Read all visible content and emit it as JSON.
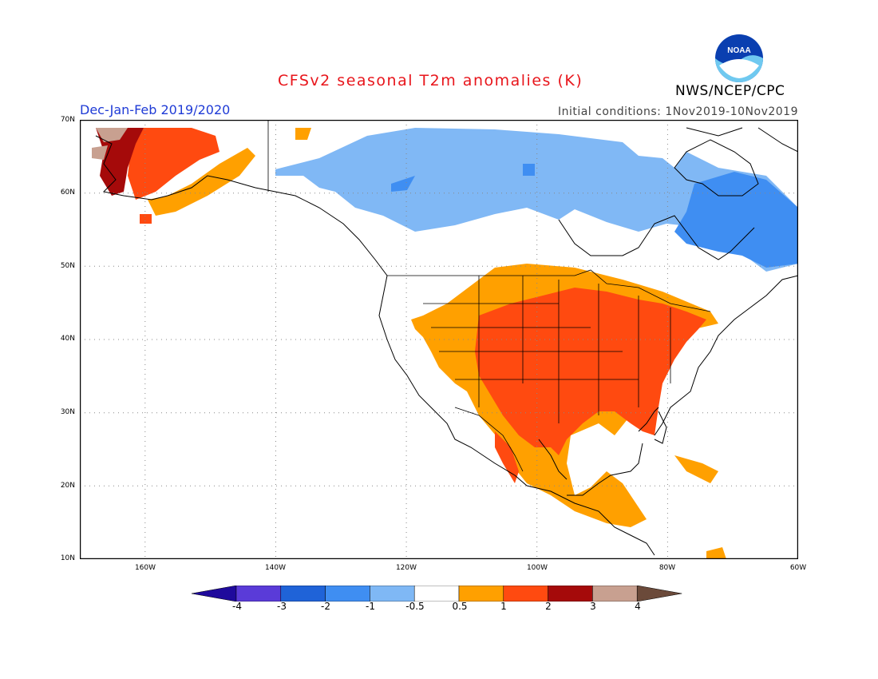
{
  "header": {
    "title": "CFSv2 seasonal T2m anomalies (K)",
    "season": "Dec-Jan-Feb 2019/2020",
    "initial_conditions": "Initial conditions: 1Nov2019-10Nov2019",
    "agency": "NWS/NCEP/CPC",
    "logo_text": "NOAA"
  },
  "map": {
    "lat_labels": [
      "70N",
      "60N",
      "50N",
      "40N",
      "30N",
      "20N",
      "10N"
    ],
    "lon_labels": [
      "160W",
      "140W",
      "120W",
      "100W",
      "80W",
      "60W"
    ],
    "projection": "lat-lon",
    "lon_range": [
      -170,
      -60
    ],
    "lat_range": [
      10,
      70
    ]
  },
  "colorbar": {
    "labels": [
      "-4",
      "-3",
      "-2",
      "-1",
      "-0.5",
      "0.5",
      "1",
      "2",
      "3",
      "4"
    ],
    "colors": [
      "#1f0a9c",
      "#5a3bd8",
      "#1f63d8",
      "#3f8ef2",
      "#7fb8f5",
      "#ffffff",
      "#ffa000",
      "#ff4a10",
      "#a50a0a",
      "#c8a090",
      "#6b4a3a"
    ]
  },
  "chart_data": {
    "type": "heatmap",
    "title": "CFSv2 seasonal T2m anomalies (K)",
    "subtitle": "Dec-Jan-Feb 2019/2020",
    "units": "K",
    "bins": [
      {
        "range": "< -4",
        "color": "#1f0a9c"
      },
      {
        "range": "-4 to -3",
        "color": "#5a3bd8"
      },
      {
        "range": "-3 to -2",
        "color": "#1f63d8"
      },
      {
        "range": "-2 to -1",
        "color": "#3f8ef2"
      },
      {
        "range": "-1 to -0.5",
        "color": "#7fb8f5"
      },
      {
        "range": "-0.5 to 0.5",
        "color": "#ffffff"
      },
      {
        "range": "0.5 to 1",
        "color": "#ffa000"
      },
      {
        "range": "1 to 2",
        "color": "#ff4a10"
      },
      {
        "range": "2 to 3",
        "color": "#a50a0a"
      },
      {
        "range": "3 to 4",
        "color": "#c8a090"
      },
      {
        "range": "> 4",
        "color": "#6b4a3a"
      }
    ]
  }
}
